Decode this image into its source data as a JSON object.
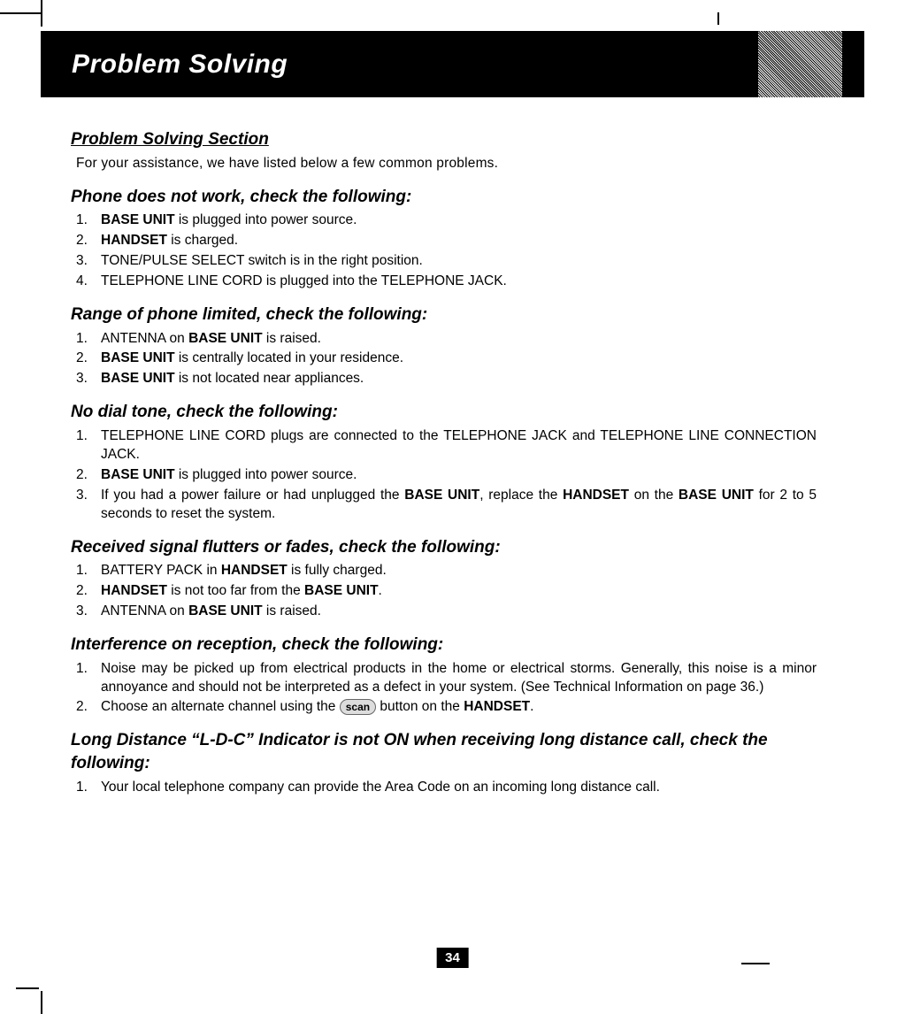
{
  "page_number": "34",
  "header": {
    "title": "Problem Solving"
  },
  "intro_heading": "Problem Solving Section",
  "intro_text": "For your assistance, we have listed below a few common problems.",
  "sections": [
    {
      "heading": "Phone does not work, check the following:",
      "items": [
        {
          "n": "1.",
          "pre": "",
          "bold": "BASE UNIT",
          "post": " is plugged into power source."
        },
        {
          "n": "2.",
          "pre": "",
          "bold": "HANDSET",
          "post": " is charged."
        },
        {
          "n": "3.",
          "plain": "TONE/PULSE SELECT switch is in the right position."
        },
        {
          "n": "4.",
          "plain": "TELEPHONE LINE CORD is plugged into the TELEPHONE JACK."
        }
      ]
    },
    {
      "heading": "Range of phone limited, check the following:",
      "items": [
        {
          "n": "1.",
          "pre": "ANTENNA on ",
          "bold": "BASE UNIT",
          "post": " is raised."
        },
        {
          "n": "2.",
          "pre": "",
          "bold": "BASE UNIT",
          "post": " is centrally located in your residence."
        },
        {
          "n": "3.",
          "pre": "",
          "bold": "BASE UNIT",
          "post": " is not located near appliances."
        }
      ]
    },
    {
      "heading": "No dial tone, check the following:",
      "items": [
        {
          "n": "1.",
          "plain": "TELEPHONE LINE CORD plugs are connected to the TELEPHONE JACK and TELEPHONE LINE CONNECTION JACK."
        },
        {
          "n": "2.",
          "pre": "",
          "bold": "BASE UNIT",
          "post": " is plugged into power source."
        },
        {
          "n": "3.",
          "multi": [
            {
              "t": "If you had a power failure or had unplugged the "
            },
            {
              "b": "BASE UNIT"
            },
            {
              "t": ", replace the "
            },
            {
              "b": "HANDSET"
            },
            {
              "t": " on the "
            },
            {
              "b": "BASE UNIT"
            },
            {
              "t": " for 2 to 5 seconds to reset the system."
            }
          ]
        }
      ]
    },
    {
      "heading": "Received signal flutters or fades, check the following:",
      "items": [
        {
          "n": "1.",
          "pre": "BATTERY PACK in ",
          "bold": "HANDSET",
          "post": " is fully charged."
        },
        {
          "n": "2.",
          "multi": [
            {
              "b": "HANDSET"
            },
            {
              "t": " is not too far from the "
            },
            {
              "b": "BASE UNIT"
            },
            {
              "t": "."
            }
          ]
        },
        {
          "n": "3.",
          "pre": "ANTENNA on ",
          "bold": "BASE UNIT",
          "post": " is raised."
        }
      ]
    },
    {
      "heading": "Interference on reception, check the following:",
      "items": [
        {
          "n": "1.",
          "plain": "Noise may be picked up from electrical products in the home or electrical storms. Generally, this noise is a minor annoyance and should not be interpreted as a defect in your system. (See Technical Information on page 36.)"
        },
        {
          "n": "2.",
          "scan": {
            "pre": "Choose an alternate channel using the ",
            "label": "scan",
            "mid": " button on the ",
            "bold": "HANDSET",
            "post": "."
          }
        }
      ]
    },
    {
      "heading": "Long Distance “L-D-C” Indicator is not ON when receiving long distance call, check the following:",
      "items": [
        {
          "n": "1.",
          "plain": "Your local telephone company can provide the Area Code on an incoming long distance call."
        }
      ]
    }
  ],
  "colors": {
    "header_bg": "#000000",
    "header_fg": "#ffffff",
    "page_bg": "#ffffff",
    "text": "#000000"
  }
}
